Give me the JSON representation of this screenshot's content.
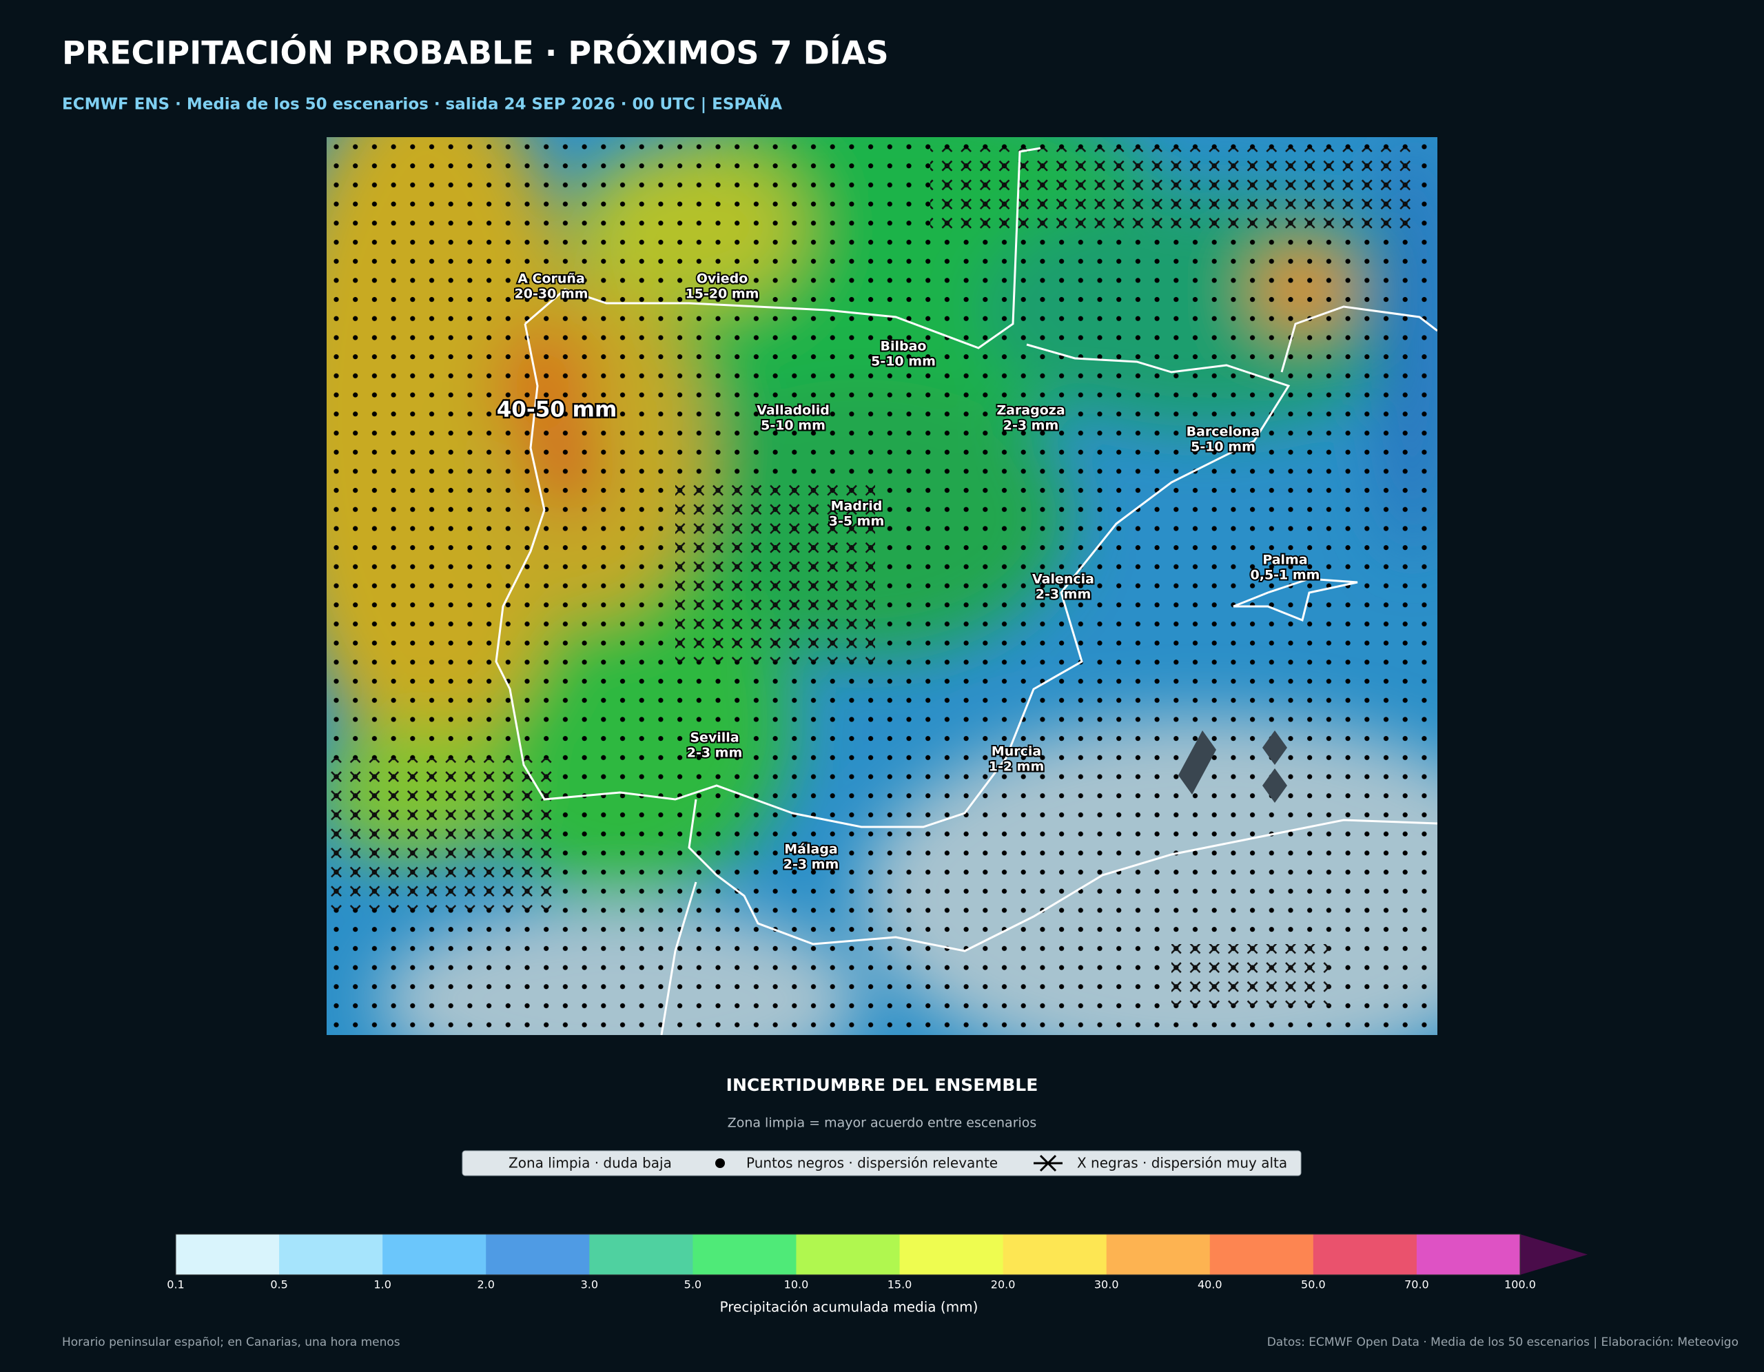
{
  "header": {
    "title": "PRECIPITACIÓN PROBABLE · PRÓXIMOS 7 DÍAS",
    "subtitle": "ECMWF ENS · Media de los 50 escenarios · salida 24 SEP 2026 · 00 UTC | ESPAÑA"
  },
  "map": {
    "highlight": "40-50 mm",
    "labels": [
      {
        "name": "A Coruña",
        "amount": "20-30 mm"
      },
      {
        "name": "Oviedo",
        "amount": "15-20 mm"
      },
      {
        "name": "Bilbao",
        "amount": "5-10 mm"
      },
      {
        "name": "Valladolid",
        "amount": "5-10 mm"
      },
      {
        "name": "Zaragoza",
        "amount": "2-3 mm"
      },
      {
        "name": "Barcelona",
        "amount": "5-10 mm"
      },
      {
        "name": "Madrid",
        "amount": "3-5 mm"
      },
      {
        "name": "Palma",
        "amount": "0,5-1 mm"
      },
      {
        "name": "Valencia",
        "amount": "2-3 mm"
      },
      {
        "name": "Sevilla",
        "amount": "2-3 mm"
      },
      {
        "name": "Murcia",
        "amount": "1-2 mm"
      },
      {
        "name": "Málaga",
        "amount": "2-3 mm"
      }
    ]
  },
  "legend": {
    "title": "INCERTIDUMBRE DEL ENSEMBLE",
    "subtitle": "Zona limpia = mayor acuerdo entre escenarios",
    "items": [
      "Zona limpia · duda baja",
      "Puntos negros · dispersión relevante",
      "X negras · dispersión muy alta"
    ]
  },
  "colorbar": {
    "label": "Precipitación acumulada media (mm)",
    "ticks": [
      "0.1",
      "0.5",
      "1.0",
      "2.0",
      "3.0",
      "5.0",
      "10.0",
      "15.0",
      "20.0",
      "30.0",
      "40.0",
      "50.0",
      "70.0",
      "100.0"
    ],
    "colors": [
      "#d9f4fc",
      "#a6e4fc",
      "#6bc6fb",
      "#4f9be4",
      "#4fd1a0",
      "#4fea78",
      "#b0f74f",
      "#eefc50",
      "#fde653",
      "#fdb351",
      "#fd8551",
      "#ea526d",
      "#de52c4"
    ],
    "extend_color": "#4a0c4a"
  },
  "footer": {
    "left": "Horario peninsular español; en Canarias, una hora menos",
    "right": "Datos: ECMWF Open Data · Media de los 50 escenarios | Elaboración: Meteovigo"
  }
}
